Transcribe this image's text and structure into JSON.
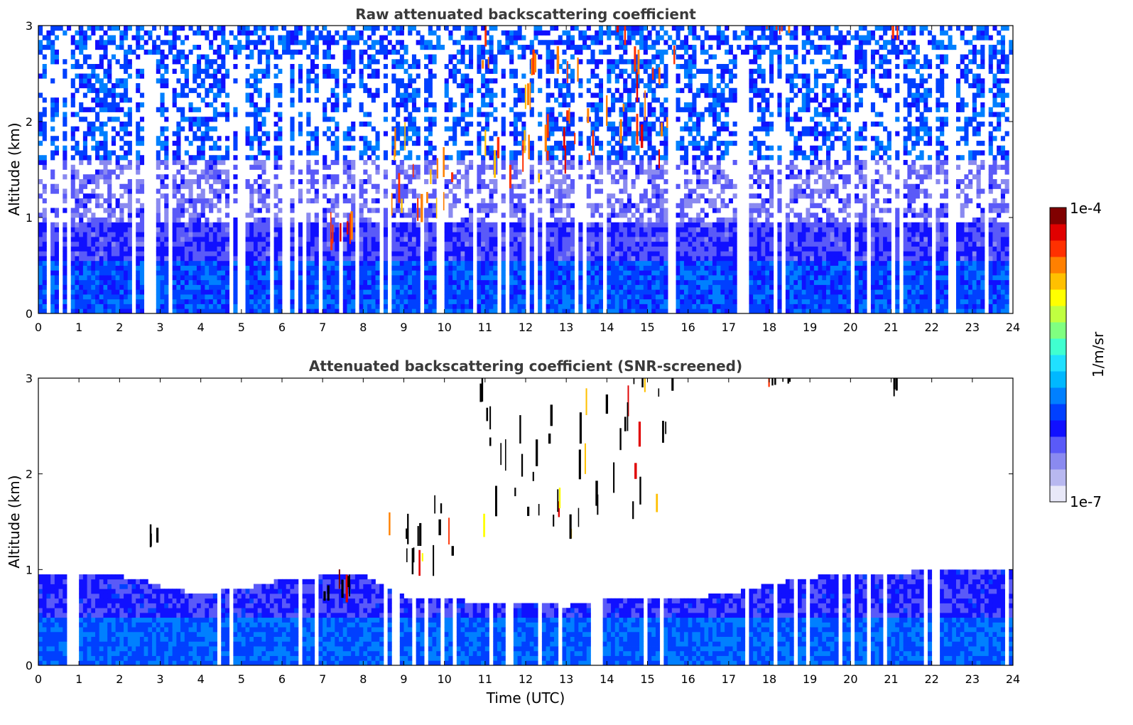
{
  "chart_data": [
    {
      "type": "heatmap",
      "title": "Raw attenuated backscattering coefficient",
      "xlabel": "",
      "ylabel": "Altitude (km)",
      "xlim": [
        0,
        24
      ],
      "ylim": [
        0,
        3
      ],
      "xticks": [
        "0",
        "1",
        "2",
        "3",
        "4",
        "5",
        "6",
        "7",
        "8",
        "9",
        "10",
        "11",
        "12",
        "13",
        "14",
        "15",
        "16",
        "17",
        "18",
        "19",
        "20",
        "21",
        "22",
        "23",
        "24"
      ],
      "yticks": [
        "0",
        "1",
        "2",
        "3"
      ],
      "color_scale": "log",
      "layers": [
        {
          "from_alt_km": 0.0,
          "to_alt_km": 0.55,
          "level": 0.3
        },
        {
          "from_alt_km": 0.55,
          "to_alt_km": 0.95,
          "level": 0.2
        },
        {
          "from_alt_km": 0.95,
          "to_alt_km": 1.6,
          "level": 0.16,
          "sparse": true
        },
        {
          "from_alt_km": 1.6,
          "to_alt_km": 3.0,
          "level": 0.3,
          "sparse": true
        }
      ],
      "features": [
        {
          "time_utc": [
            7.0,
            7.7
          ],
          "alt_km": [
            0.65,
            0.85
          ],
          "level": 0.97
        },
        {
          "time_utc": [
            8.6,
            10.2
          ],
          "alt_km": [
            0.9,
            1.7
          ],
          "level": 0.9
        },
        {
          "time_utc": [
            10.6,
            13.8
          ],
          "alt_km": [
            1.3,
            2.8
          ],
          "level": 0.92
        },
        {
          "time_utc": [
            13.9,
            15.7
          ],
          "alt_km": [
            1.5,
            3.0
          ],
          "level": 0.95
        },
        {
          "time_utc": [
            17.9,
            18.5
          ],
          "alt_km": [
            2.9,
            3.0
          ],
          "level": 0.95
        },
        {
          "time_utc": [
            21.0,
            21.2
          ],
          "alt_km": [
            2.8,
            3.0
          ],
          "level": 0.95
        }
      ]
    },
    {
      "type": "heatmap",
      "title": "Attenuated backscattering coefficient (SNR-screened)",
      "xlabel": "Time (UTC)",
      "ylabel": "Altitude (km)",
      "xlim": [
        0,
        24
      ],
      "ylim": [
        0,
        3
      ],
      "xticks": [
        "0",
        "1",
        "2",
        "3",
        "4",
        "5",
        "6",
        "7",
        "8",
        "9",
        "10",
        "11",
        "12",
        "13",
        "14",
        "15",
        "16",
        "17",
        "18",
        "19",
        "20",
        "21",
        "22",
        "23",
        "24"
      ],
      "yticks": [
        "0",
        "1",
        "2",
        "3"
      ],
      "color_scale": "log",
      "boundary_layer_top_km": {
        "time_utc": [
          0,
          1,
          2,
          2.7,
          3,
          4,
          5,
          6,
          7,
          7.5,
          8,
          9,
          10,
          11,
          12,
          13,
          14,
          15,
          16,
          17,
          18,
          19,
          20,
          21,
          22,
          23,
          24
        ],
        "alt_km": [
          0.97,
          0.95,
          0.93,
          0.88,
          0.82,
          0.75,
          0.8,
          0.9,
          0.93,
          0.95,
          0.95,
          0.72,
          0.7,
          0.65,
          0.65,
          0.62,
          0.68,
          0.7,
          0.7,
          0.75,
          0.85,
          0.92,
          0.95,
          0.97,
          0.98,
          1.0,
          1.0
        ]
      },
      "features": [
        {
          "time_utc": [
            7.0,
            7.7
          ],
          "alt_km": [
            0.65,
            0.85
          ],
          "level": 0.99
        },
        {
          "time_utc": [
            8.6,
            10.2
          ],
          "alt_km": [
            0.9,
            1.7
          ],
          "level": 0.99
        },
        {
          "time_utc": [
            10.6,
            13.8
          ],
          "alt_km": [
            1.3,
            2.8
          ],
          "level": 0.99
        },
        {
          "time_utc": [
            13.9,
            15.7
          ],
          "alt_km": [
            1.5,
            3.0
          ],
          "level": 0.99
        },
        {
          "time_utc": [
            17.9,
            18.5
          ],
          "alt_km": [
            2.9,
            3.0
          ],
          "level": 0.99
        },
        {
          "time_utc": [
            21.0,
            21.2
          ],
          "alt_km": [
            2.8,
            3.0
          ],
          "level": 0.99
        },
        {
          "time_utc": [
            2.7,
            3.0
          ],
          "alt_km": [
            1.2,
            1.3
          ],
          "level": 0.55
        }
      ]
    }
  ],
  "colorbar": {
    "max_label": "1e-4",
    "min_label": "1e-7",
    "unit_label": "1/m/sr",
    "colors": [
      "#e8e8f8",
      "#b8b8f0",
      "#8a8af0",
      "#5a5af8",
      "#1010ff",
      "#0040ff",
      "#0080ff",
      "#00b8ff",
      "#20e0ff",
      "#40ffd0",
      "#80ff80",
      "#c0ff40",
      "#ffff00",
      "#ffc000",
      "#ff8000",
      "#ff3000",
      "#e00000",
      "#800000"
    ]
  }
}
